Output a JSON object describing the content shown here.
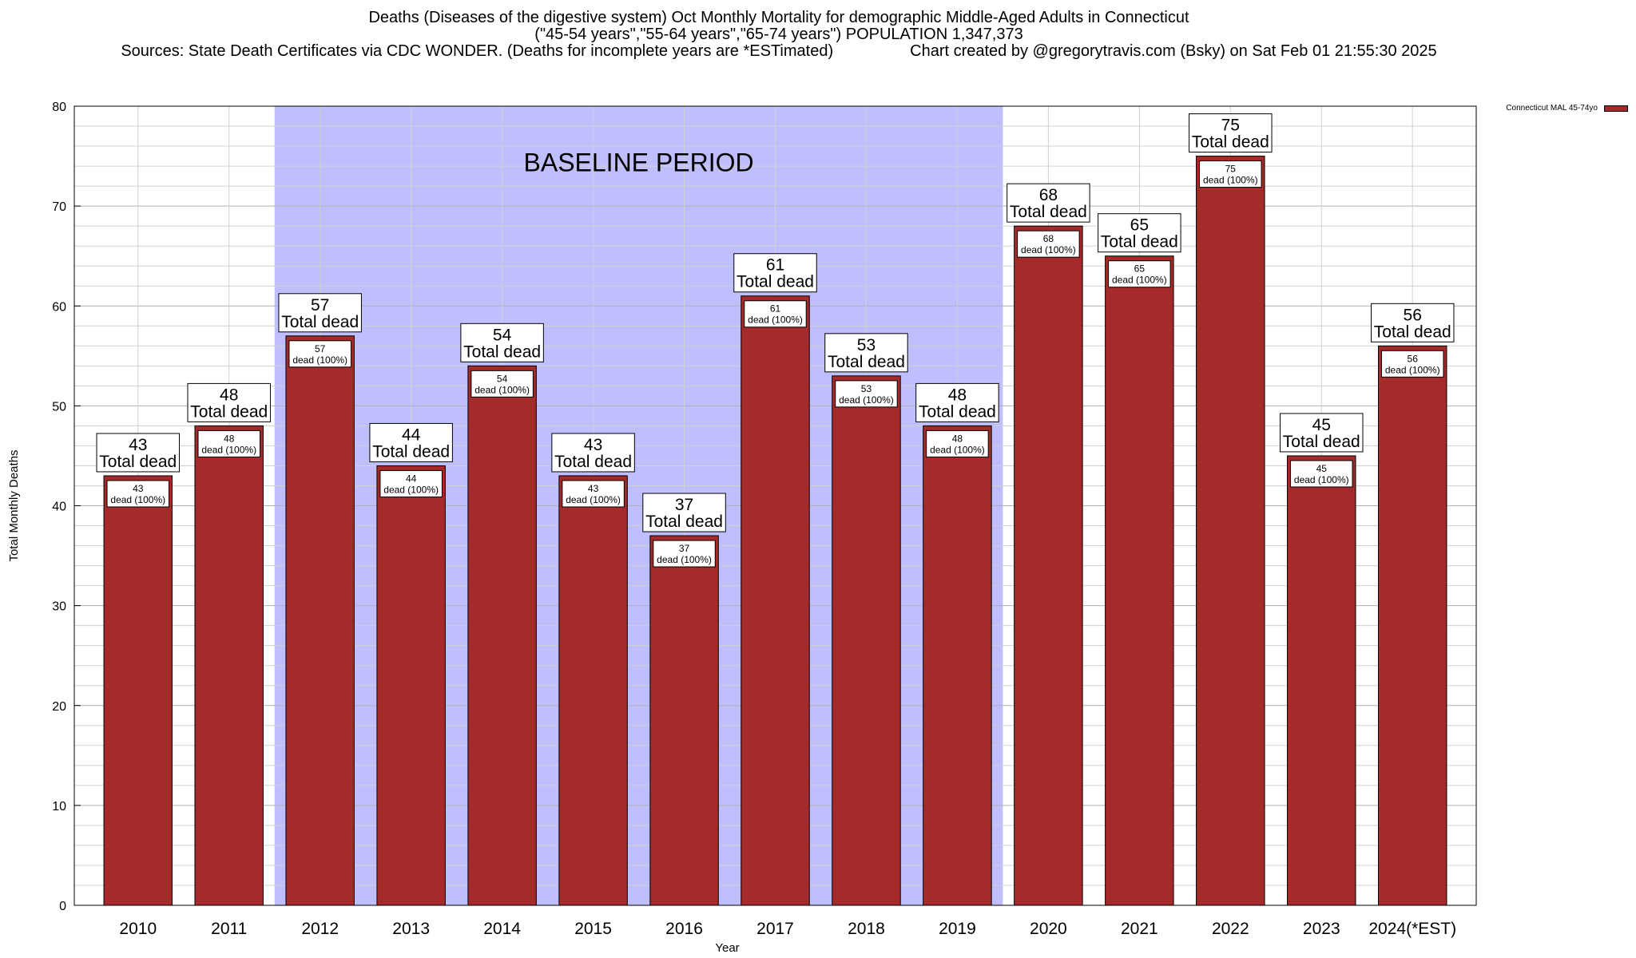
{
  "chart_data": {
    "type": "bar",
    "title": "Deaths (Diseases of the digestive system) Oct Monthly Mortality for demographic Middle-Aged Adults in Connecticut",
    "subtitle": "(\"45-54 years\",\"55-64 years\",\"65-74 years\") POPULATION 1,347,373",
    "sources": "Sources: State Death Certificates via CDC WONDER. (Deaths for incomplete years are *ESTimated)",
    "credit": "Chart created by @gregorytravis.com (Bsky) on Sat Feb 01 21:55:30 2025",
    "xlabel": "Year",
    "ylabel": "Total Monthly Deaths",
    "ylim": [
      0,
      80
    ],
    "yticks": [
      0,
      10,
      20,
      30,
      40,
      50,
      60,
      70,
      80
    ],
    "categories": [
      "2010",
      "2011",
      "2012",
      "2013",
      "2014",
      "2015",
      "2016",
      "2017",
      "2018",
      "2019",
      "2020",
      "2021",
      "2022",
      "2023",
      "2024(*EST)"
    ],
    "series": [
      {
        "name": "Connecticut MAL 45-74yo",
        "color": "#a52a2a",
        "values": [
          43,
          48,
          57,
          44,
          54,
          43,
          37,
          61,
          53,
          48,
          68,
          65,
          75,
          45,
          56
        ]
      }
    ],
    "top_label_suffix": "Total dead",
    "inner_label_suffix": "dead (100%)",
    "baseline": {
      "label": "BASELINE PERIOD",
      "start": "2012",
      "end": "2019",
      "color": "#bfbfff"
    },
    "grid": true,
    "legend_position": "top-right"
  }
}
